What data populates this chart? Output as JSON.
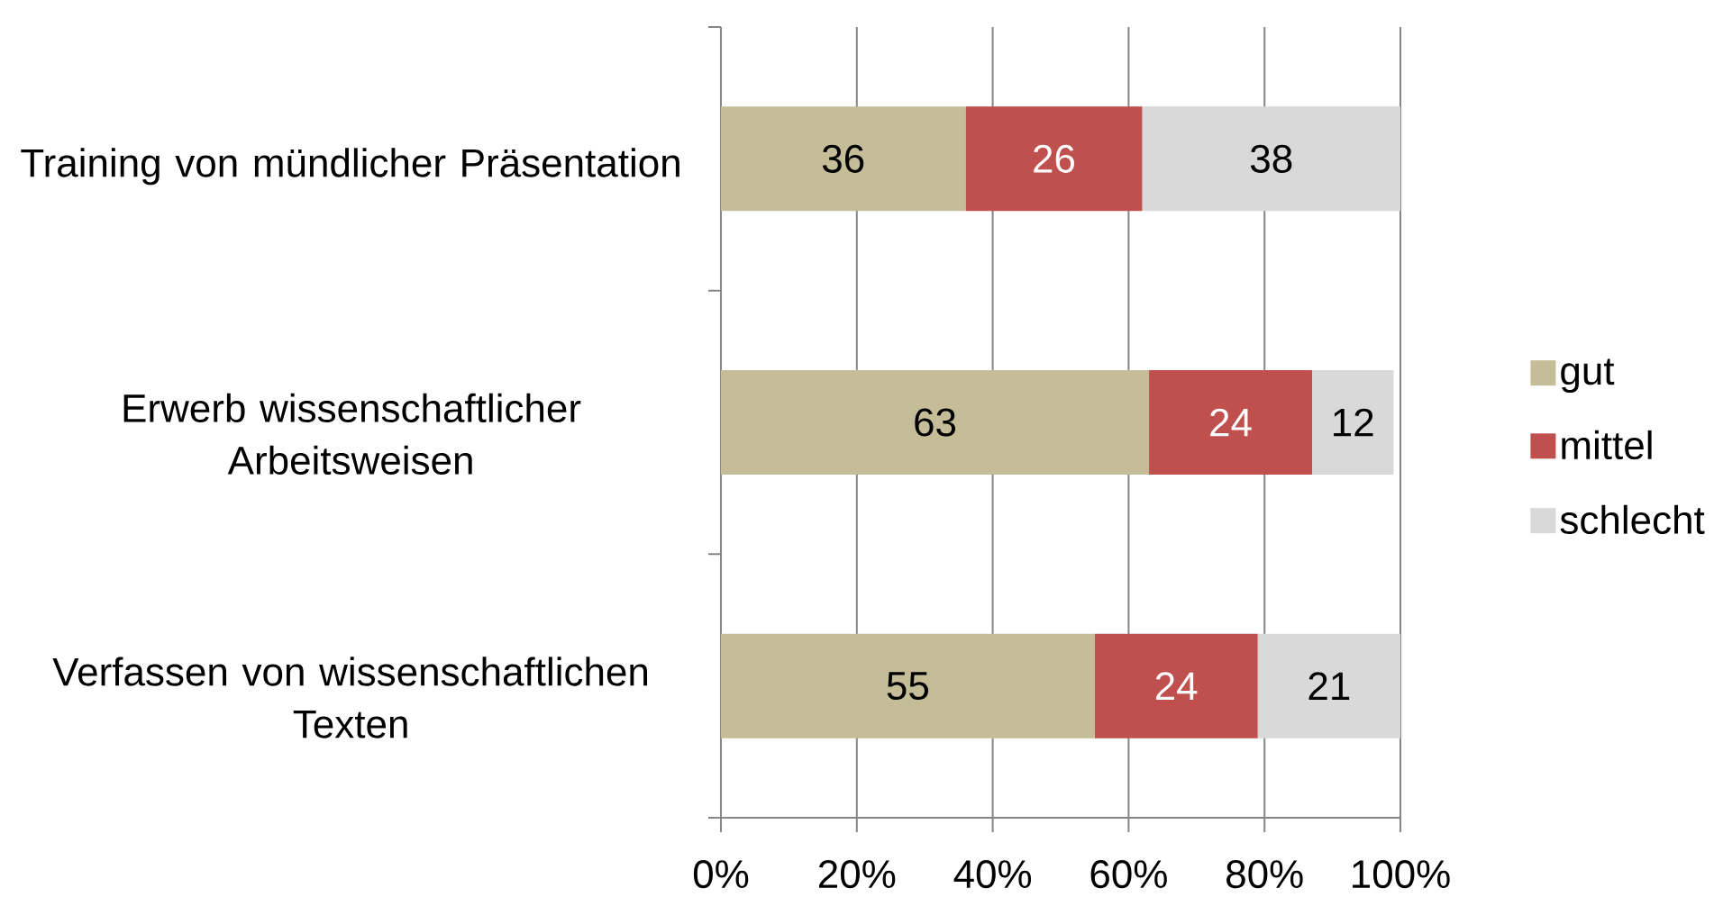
{
  "chart_data": {
    "type": "bar",
    "orientation": "horizontal",
    "stacked": true,
    "categories": [
      "Training von mündlicher Präsentation",
      "Erwerb wissenschaftlicher Arbeitsweisen",
      "Verfassen von wissenschaftlichen Texten"
    ],
    "series": [
      {
        "name": "gut",
        "color": "#c4bd97",
        "values": [
          36,
          63,
          55
        ]
      },
      {
        "name": "mittel",
        "color": "#c0504d",
        "values": [
          26,
          24,
          24
        ]
      },
      {
        "name": "schlecht",
        "color": "#d9d9d9",
        "values": [
          38,
          12,
          21
        ]
      }
    ],
    "xlim": [
      0,
      100
    ],
    "xticks": [
      {
        "value": 0,
        "label": "0%"
      },
      {
        "value": 20,
        "label": "20%"
      },
      {
        "value": 40,
        "label": "40%"
      },
      {
        "value": 60,
        "label": "60%"
      },
      {
        "value": 80,
        "label": "80%"
      },
      {
        "value": 100,
        "label": "100%"
      }
    ],
    "grid": "x",
    "legend": "right",
    "data_labels": true
  }
}
